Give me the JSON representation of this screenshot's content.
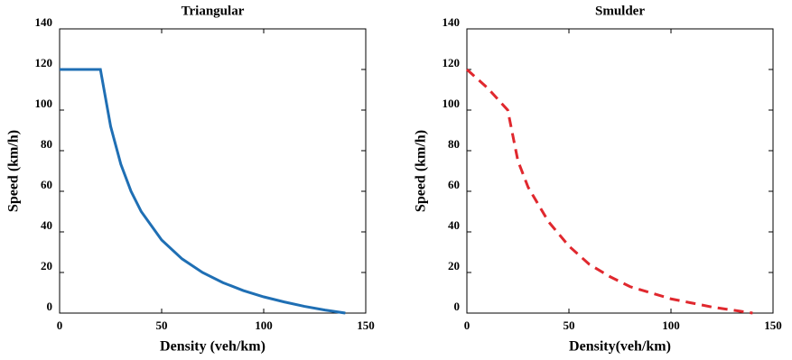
{
  "chart_data": [
    {
      "type": "line",
      "title": "Triangular",
      "xlabel": "Density (veh/km)",
      "ylabel": "Speed (km/h)",
      "xlim": [
        0,
        150
      ],
      "ylim": [
        0,
        140
      ],
      "xticks": [
        0,
        50,
        100,
        150
      ],
      "yticks": [
        0,
        20,
        40,
        60,
        80,
        100,
        120,
        140
      ],
      "x": [
        0,
        10,
        20,
        25,
        30,
        35,
        40,
        50,
        60,
        70,
        80,
        90,
        100,
        110,
        120,
        130,
        140
      ],
      "series": [
        {
          "color": "#1f6fb4",
          "dash": false,
          "values": [
            120,
            120,
            120,
            92,
            73.3,
            60,
            50,
            36,
            26.7,
            20,
            15,
            11.1,
            8,
            5.5,
            3.3,
            1.5,
            0
          ]
        }
      ]
    },
    {
      "type": "line",
      "title": "Smulder",
      "xlabel": "Density(veh/km)",
      "ylabel": "Speed (km/h)",
      "xlim": [
        0,
        150
      ],
      "ylim": [
        0,
        140
      ],
      "xticks": [
        0,
        50,
        100,
        150
      ],
      "yticks": [
        0,
        20,
        40,
        60,
        80,
        100,
        120,
        140
      ],
      "x": [
        0,
        10,
        20,
        25,
        30,
        40,
        50,
        60,
        70,
        80,
        90,
        100,
        110,
        120,
        130,
        140
      ],
      "series": [
        {
          "color": "#e0282e",
          "dash": true,
          "values": [
            120,
            111,
            100,
            75,
            62,
            45,
            33,
            24,
            18,
            13,
            10,
            7,
            5,
            3,
            1.5,
            0
          ]
        }
      ]
    }
  ]
}
